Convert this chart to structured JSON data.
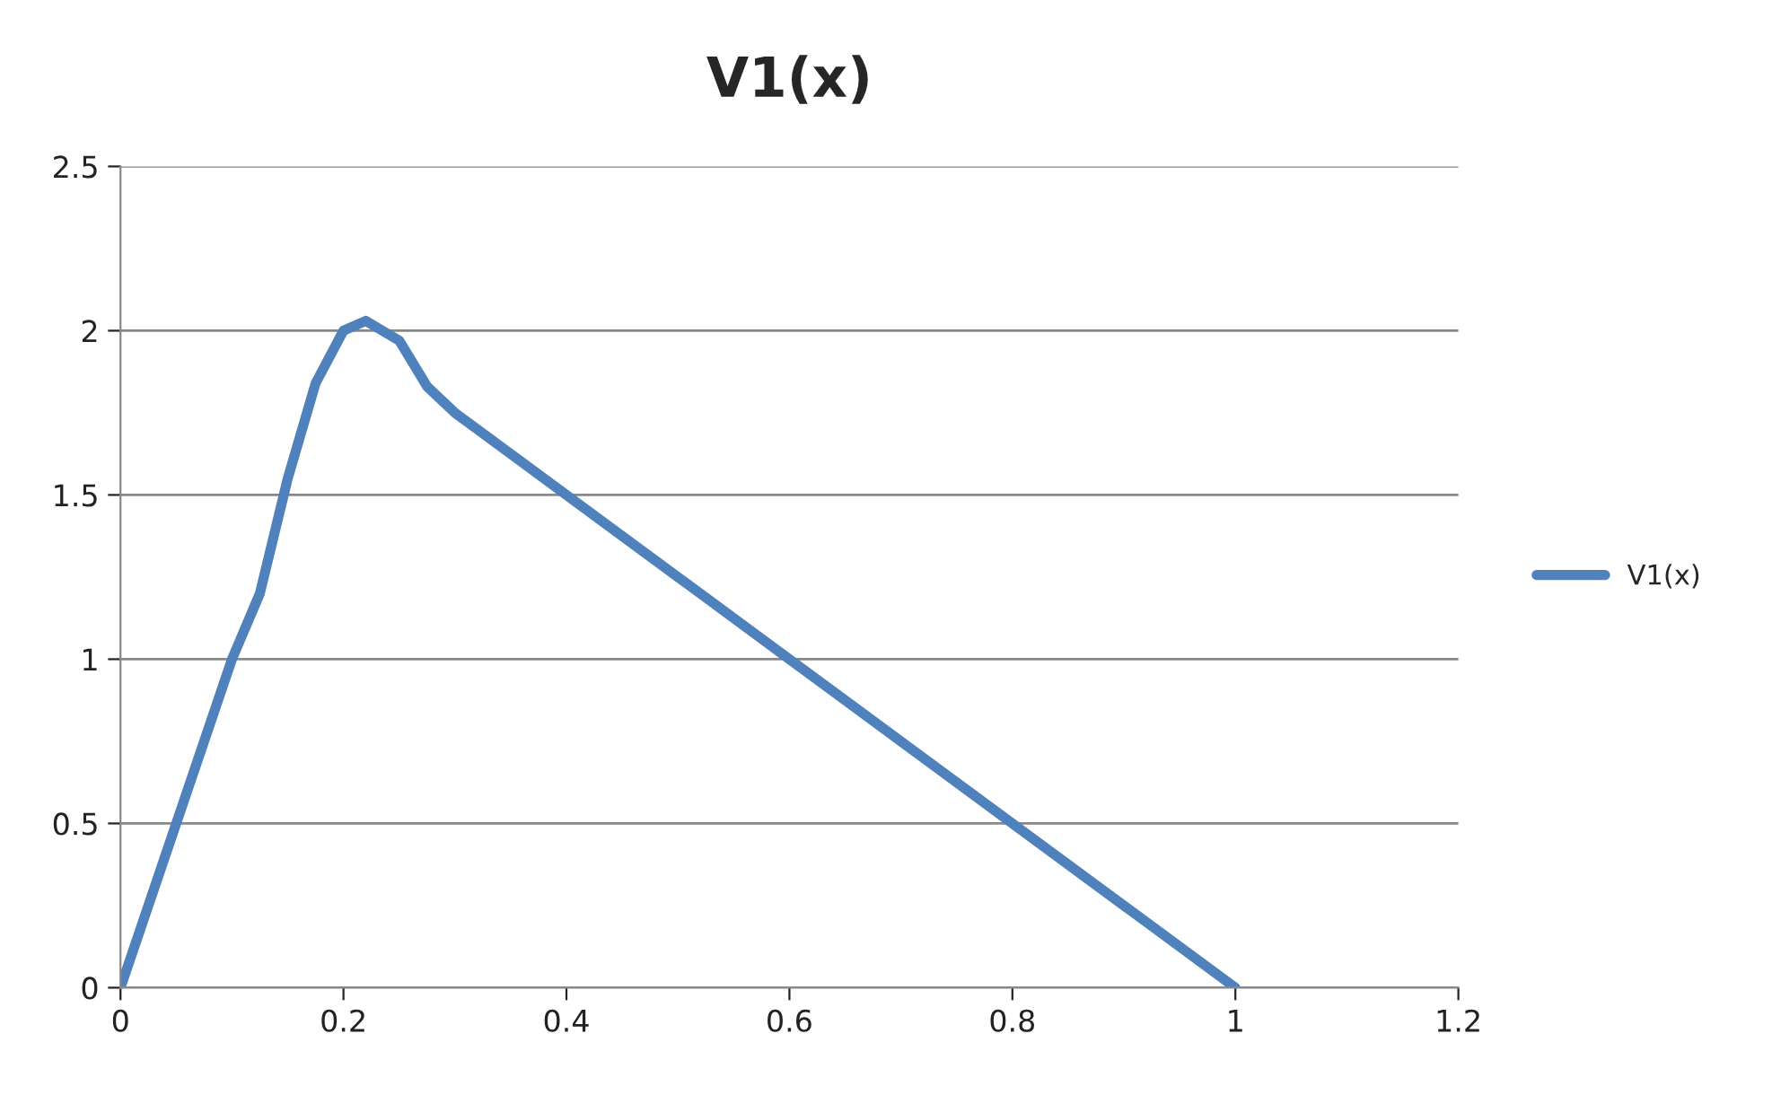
{
  "chart_data": {
    "type": "line",
    "title": "V1(x)",
    "x": [
      0,
      0.1,
      0.125,
      0.15,
      0.175,
      0.2,
      0.22,
      0.25,
      0.275,
      0.3,
      0.4,
      0.5,
      0.6,
      0.7,
      0.8,
      0.9,
      1.0
    ],
    "series": [
      {
        "name": "V1(x)",
        "color": "#4f81bd",
        "values": [
          0,
          1,
          1.2,
          1.55,
          1.84,
          2,
          2.03,
          1.97,
          1.83,
          1.75,
          1.5,
          1.25,
          1,
          0.75,
          0.5,
          0.25,
          0
        ]
      }
    ],
    "xlim": [
      0,
      1.2
    ],
    "xticks": [
      0,
      0.2,
      0.4,
      0.6,
      0.8,
      1,
      1.2
    ],
    "ylim": [
      0,
      2.5
    ],
    "yticks": [
      0,
      0.5,
      1,
      1.5,
      2,
      2.5
    ],
    "grid": "y",
    "legend": "right",
    "marker": "none",
    "line_style": "solid"
  }
}
